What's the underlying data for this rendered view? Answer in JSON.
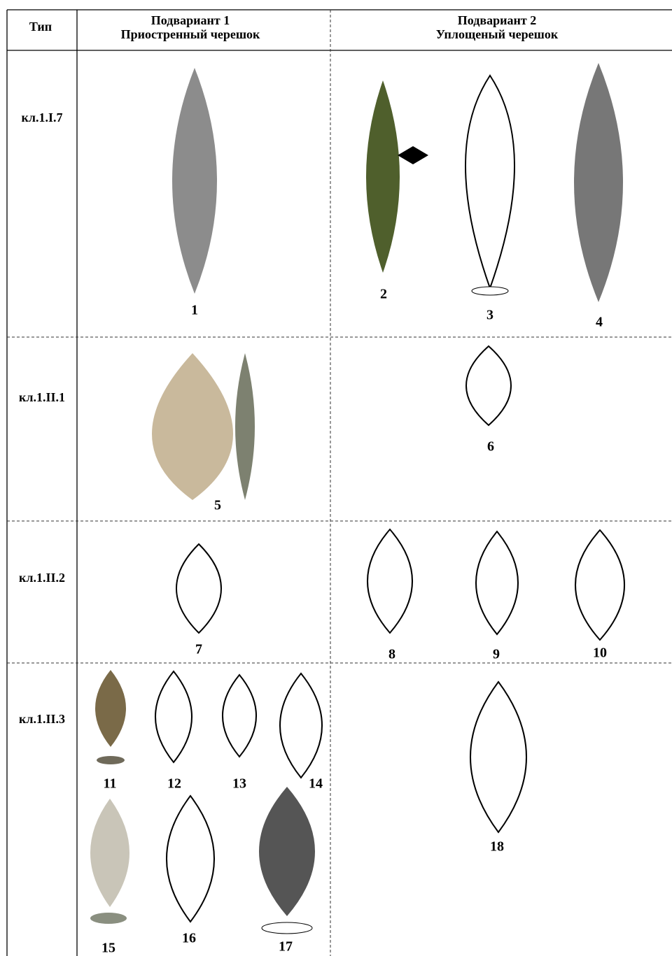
{
  "table": {
    "header": {
      "type": "Тип",
      "sub1": [
        "Подвариант 1",
        "Приостренный черешок"
      ],
      "sub2": [
        "Подвариант 2",
        "Уплощеный черешок"
      ]
    },
    "rows": [
      {
        "type": "кл.1.I.7",
        "labels": [
          "1",
          "2",
          "3",
          "4"
        ]
      },
      {
        "type": "кл.1.II.1",
        "labels": [
          "5",
          "6"
        ]
      },
      {
        "type": "кл.1.II.2",
        "labels": [
          "7",
          "8",
          "9",
          "10"
        ]
      },
      {
        "type": "кл.1.II.3",
        "labels": [
          "11",
          "12",
          "13",
          "14",
          "15",
          "16",
          "17",
          "18"
        ]
      }
    ]
  }
}
